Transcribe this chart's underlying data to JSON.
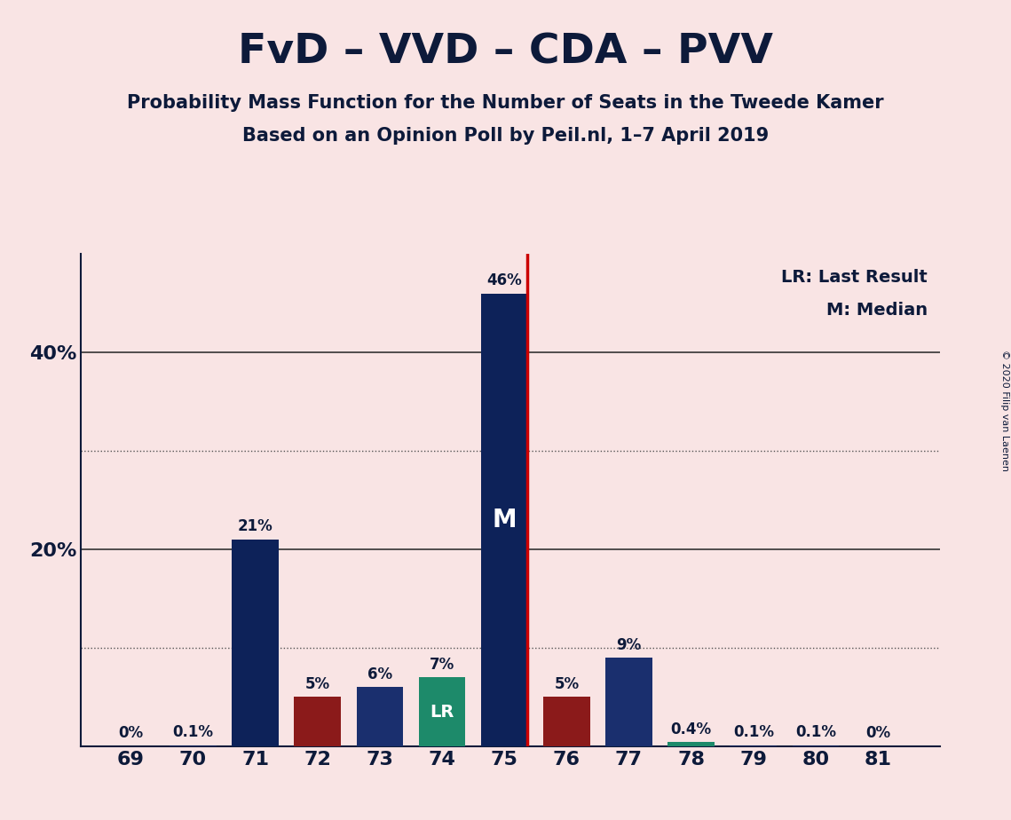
{
  "title": "FvD – VVD – CDA – PVV",
  "subtitle1": "Probability Mass Function for the Number of Seats in the Tweede Kamer",
  "subtitle2": "Based on an Opinion Poll by Peil.nl, 1–7 April 2019",
  "copyright": "© 2020 Filip van Laenen",
  "seats": [
    69,
    70,
    71,
    72,
    73,
    74,
    75,
    76,
    77,
    78,
    79,
    80,
    81
  ],
  "values": [
    0.0,
    0.1,
    21.0,
    5.0,
    6.0,
    7.0,
    46.0,
    5.0,
    9.0,
    0.4,
    0.1,
    0.1,
    0.0
  ],
  "labels": [
    "0%",
    "0.1%",
    "21%",
    "5%",
    "6%",
    "7%",
    "46%",
    "5%",
    "9%",
    "0.4%",
    "0.1%",
    "0.1%",
    "0%"
  ],
  "color_map": {
    "69": "#0d2259",
    "70": "#0d2259",
    "71": "#0d2259",
    "72": "#8b1a1a",
    "73": "#1a2f6e",
    "74": "#1d8a6a",
    "75": "#0d2259",
    "76": "#8b1a1a",
    "77": "#1a2f6e",
    "78": "#1d8a6a",
    "79": "#0d2259",
    "80": "#0d2259",
    "81": "#0d2259"
  },
  "median_seat": 75,
  "lr_seat": 74,
  "lr_label": "LR",
  "median_label": "M",
  "background_color": "#f9e4e4",
  "vline_color": "#cc0000",
  "legend_text": "LR: Last Result\nM: Median",
  "bar_width": 0.75,
  "ylim_max": 50,
  "dotted_lines": [
    10,
    30
  ],
  "solid_lines": [
    20,
    40
  ],
  "ytick_vals": [
    20,
    40
  ],
  "ytick_labels": [
    "20%",
    "40%"
  ],
  "label_color": "#0d1a3a",
  "spine_color": "#0d1a3a"
}
